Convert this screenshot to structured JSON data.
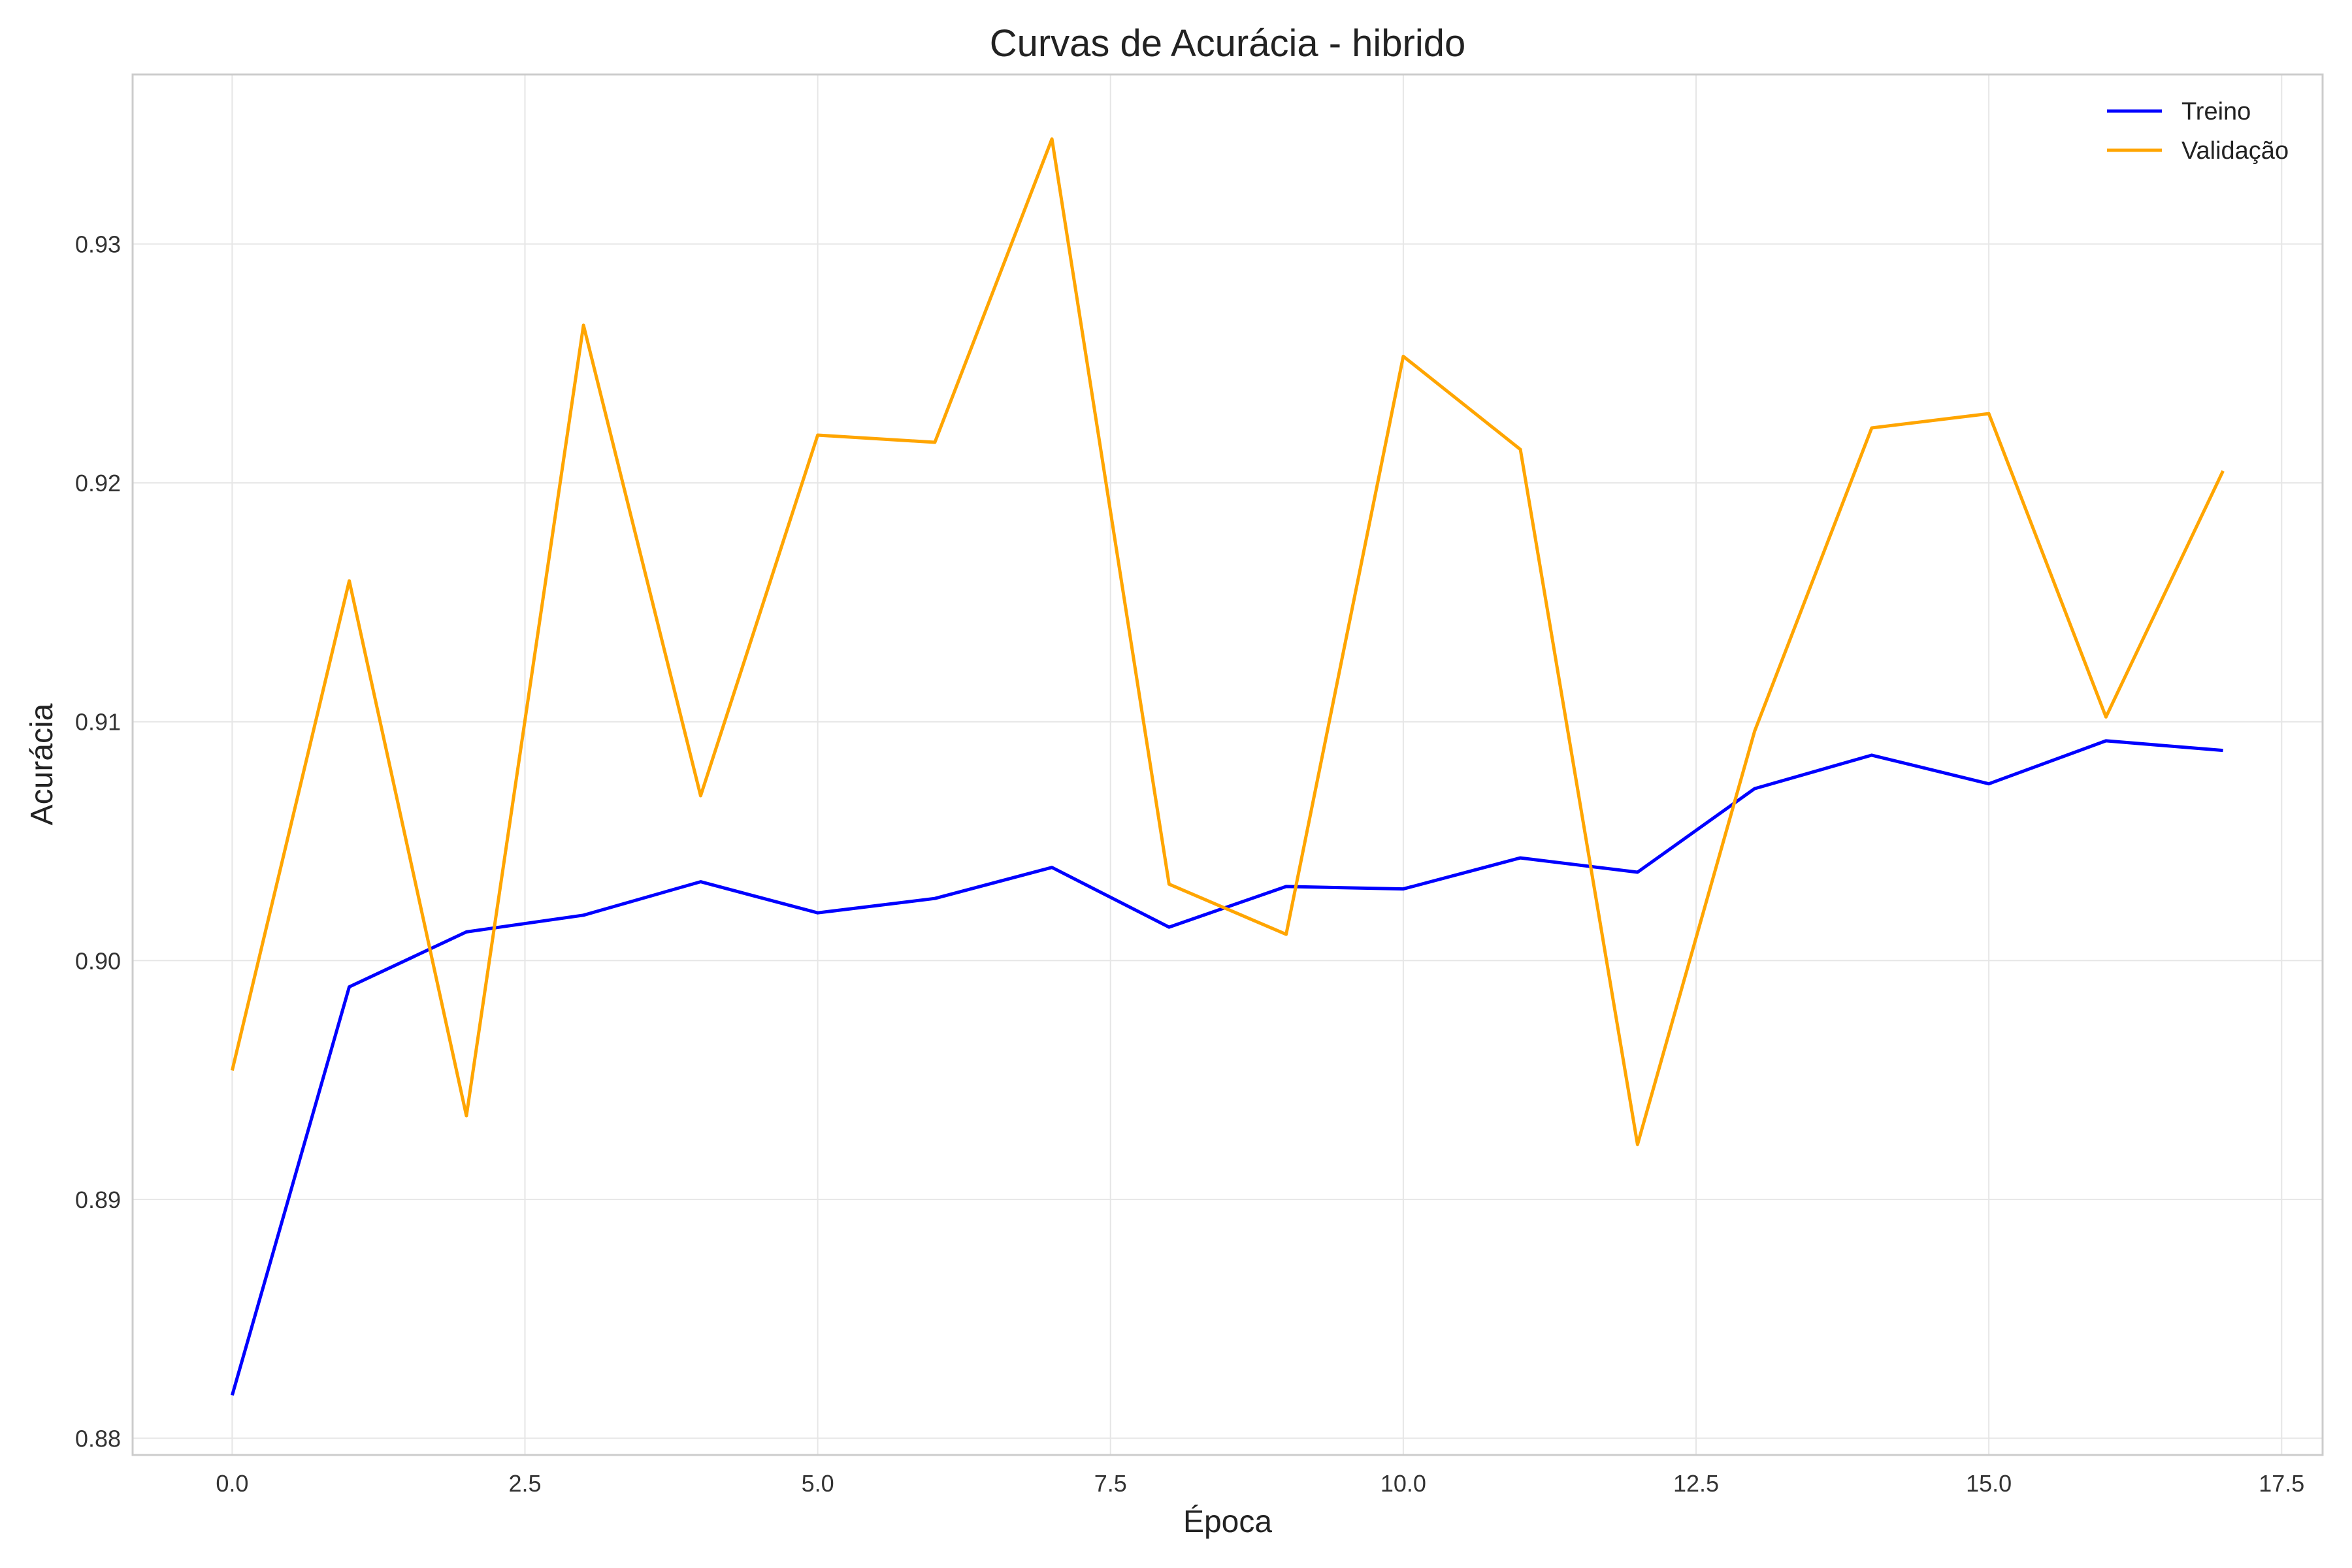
{
  "chart_data": {
    "type": "line",
    "title": "Curvas de Acurácia - hibrido",
    "xlabel": "Época",
    "ylabel": "Acurácia",
    "xlim": [
      -0.85,
      17.85
    ],
    "ylim": [
      0.8793,
      0.9371
    ],
    "xticks": [
      0,
      2.5,
      5,
      7.5,
      10,
      12.5,
      15,
      17.5
    ],
    "xtick_labels": [
      "0.0",
      "2.5",
      "5.0",
      "7.5",
      "10.0",
      "12.5",
      "15.0",
      "17.5"
    ],
    "yticks": [
      0.88,
      0.89,
      0.9,
      0.91,
      0.92,
      0.93
    ],
    "ytick_labels": [
      "0.88",
      "0.89",
      "0.90",
      "0.91",
      "0.92",
      "0.93"
    ],
    "grid": true,
    "legend_position": "top-right",
    "x": [
      0,
      1,
      2,
      3,
      4,
      5,
      6,
      7,
      8,
      9,
      10,
      11,
      12,
      13,
      14,
      15,
      16,
      17
    ],
    "series": [
      {
        "name": "Treino",
        "color": "#0000ff",
        "values": [
          0.8818,
          0.8989,
          0.9012,
          0.9019,
          0.9033,
          0.902,
          0.9026,
          0.9039,
          0.9014,
          0.9031,
          0.903,
          0.9043,
          0.9037,
          0.9072,
          0.9086,
          0.9074,
          0.9092,
          0.9088
        ]
      },
      {
        "name": "Validação",
        "color": "#ffa500",
        "values": [
          0.8954,
          0.9159,
          0.8935,
          0.9266,
          0.9069,
          0.922,
          0.9217,
          0.9344,
          0.9032,
          0.9011,
          0.9253,
          0.9214,
          0.8923,
          0.9096,
          0.9223,
          0.9229,
          0.9102,
          0.9205
        ]
      }
    ]
  }
}
